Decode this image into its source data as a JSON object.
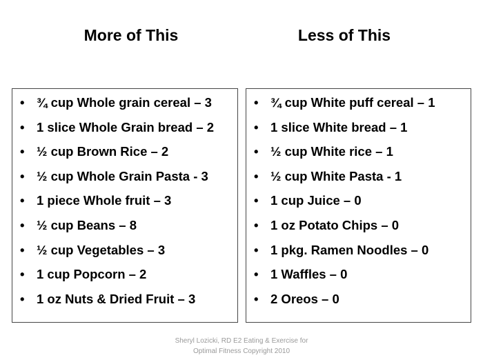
{
  "left": {
    "title": "More of This",
    "items": [
      "¾ cup Whole grain cereal – 3",
      "1 slice Whole Grain bread – 2",
      "½ cup Brown Rice – 2",
      "½ cup Whole Grain Pasta - 3",
      "1 piece Whole fruit – 3",
      "½ cup Beans – 8",
      "½ cup Vegetables – 3",
      "1 cup Popcorn – 2",
      "1 oz Nuts & Dried Fruit – 3"
    ]
  },
  "right": {
    "title": "Less of This",
    "items": [
      "¾ cup White puff cereal – 1",
      "1 slice White bread – 1",
      "½ cup White rice – 1",
      "½ cup White Pasta - 1",
      "1 cup Juice – 0",
      "1 oz Potato Chips – 0",
      "1 pkg. Ramen Noodles – 0",
      "1 Waffles – 0",
      "2 Oreos – 0"
    ]
  },
  "footer": {
    "line1": "Sheryl Lozicki, RD E2 Eating & Exercise for",
    "line2": "Optimal Fitness Copyright 2010"
  }
}
